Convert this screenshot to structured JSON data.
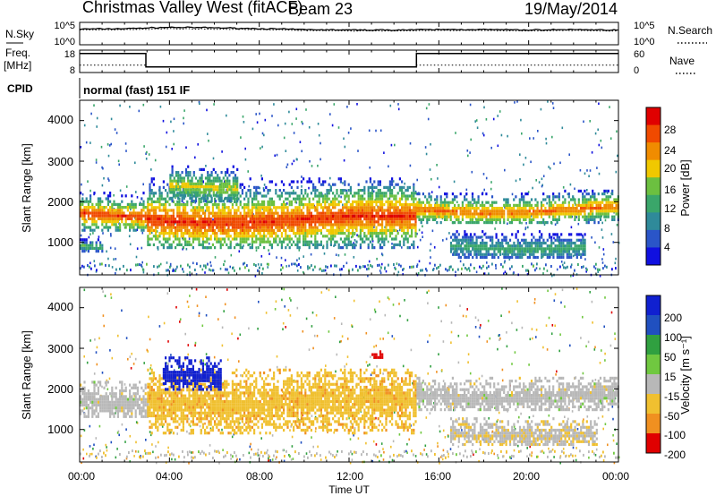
{
  "header": {
    "title": "Christmas Valley West (fitACF)",
    "beam": "Beam 23",
    "date": "19/May/2014"
  },
  "noise_panel": {
    "left_label": "N.Sky",
    "left_ticks": [
      "10^5",
      "10^0"
    ],
    "right_label": "N.Search",
    "right_ticks": [
      "10^5",
      "10^0"
    ]
  },
  "freq_panel": {
    "left_label_1": "Freq.",
    "left_label_2": "[MHz]",
    "left_ticks": [
      "18",
      "8"
    ],
    "right_label": "Nave",
    "right_ticks": [
      "60",
      "0"
    ]
  },
  "cpid": {
    "label": "CPID",
    "text": "normal (fast) 151 IF"
  },
  "x_axis": {
    "ticks": [
      "00:00",
      "04:00",
      "08:00",
      "12:00",
      "16:00",
      "20:00",
      "00:00"
    ],
    "label": "Time UT"
  },
  "power_panel": {
    "ylabel": "Slant Range [km]",
    "yticks": [
      "4000",
      "3000",
      "2000",
      "1000"
    ],
    "colorbar_label": "Power [dB]",
    "colorbar_ticks": [
      "28",
      "24",
      "20",
      "16",
      "12",
      "8",
      "4"
    ]
  },
  "velocity_panel": {
    "ylabel": "Slant Range [km]",
    "yticks": [
      "4000",
      "3000",
      "2000",
      "1000"
    ],
    "colorbar_label": "Velocity [m s⁻¹]",
    "colorbar_ticks": [
      "200",
      "100",
      "50",
      "15",
      "-15",
      "-50",
      "-100",
      "-200"
    ]
  },
  "colors": {
    "power_scale": [
      "#1010e0",
      "#2a55c8",
      "#2f8a9a",
      "#3aa66a",
      "#6cc040",
      "#f0c800",
      "#f08c00",
      "#f04a00",
      "#e00000"
    ],
    "velocity_scale": [
      "#1020d0",
      "#2050c0",
      "#30a040",
      "#70c840",
      "#b8b8b8",
      "#b8b8b8",
      "#f0c030",
      "#f09020",
      "#f05010",
      "#e00000"
    ],
    "velocity_bins": [
      {
        "label": "200",
        "color": "#1020d0"
      },
      {
        "label": "100",
        "color": "#2050c0"
      },
      {
        "label": "50",
        "color": "#30a040"
      },
      {
        "label": "15",
        "color": "#70c840"
      },
      {
        "label": "-15",
        "color": "#b8b8b8"
      },
      {
        "label": "-50",
        "color": "#f0c030"
      },
      {
        "label": "-100",
        "color": "#f09020"
      },
      {
        "label": "-200",
        "color": "#e00000"
      }
    ]
  },
  "chart_data": [
    {
      "type": "line",
      "panel": "noise",
      "x": [
        0,
        2,
        4,
        6,
        8,
        10,
        12,
        14,
        16,
        18,
        20,
        22,
        24
      ],
      "series": [
        {
          "name": "N.Sky",
          "values": [
            3.5,
            3.6,
            3.9,
            3.8,
            3.6,
            3.4,
            3.3,
            3.3,
            3.4,
            3.4,
            3.3,
            3.4,
            3.3
          ]
        },
        {
          "name": "N.Search",
          "values": [
            3.3,
            3.4,
            3.6,
            3.5,
            3.4,
            3.2,
            3.1,
            3.1,
            3.2,
            3.2,
            3.1,
            3.2,
            3.1
          ]
        }
      ],
      "ylim_log10": [
        0,
        5
      ]
    },
    {
      "type": "line",
      "panel": "frequency",
      "x": [
        0,
        2.95,
        2.95,
        15.0,
        15.0,
        24
      ],
      "series": [
        {
          "name": "Freq. [MHz]",
          "values": [
            16.5,
            16.5,
            10.5,
            10.5,
            16.5,
            16.5
          ]
        },
        {
          "name": "Nave",
          "values": [
            20,
            20,
            15,
            15,
            20,
            20
          ]
        }
      ],
      "ylim_freq": [
        8,
        18
      ],
      "ylim_nave": [
        0,
        60
      ]
    },
    {
      "type": "heatmap",
      "panel": "power",
      "x_unit": "hours UT",
      "xlim": [
        0,
        24
      ],
      "ylim": [
        200,
        4500
      ],
      "clim": [
        0,
        30
      ],
      "regions": [
        {
          "t0": 0.0,
          "t1": 3.0,
          "r0": 1300,
          "r1": 2250,
          "core": 1750,
          "peak_db": 26
        },
        {
          "t0": 0.0,
          "t1": 1.0,
          "r0": 800,
          "r1": 1100,
          "core": 950,
          "peak_db": 14
        },
        {
          "t0": 3.0,
          "t1": 15.0,
          "r0": 900,
          "r1": 2600,
          "core": 1600,
          "peak_db": 27
        },
        {
          "t0": 4.0,
          "t1": 7.0,
          "r0": 2000,
          "r1": 2900,
          "core": 2450,
          "peak_db": 18
        },
        {
          "t0": 15.0,
          "t1": 24.0,
          "r0": 1500,
          "r1": 2300,
          "core": 1850,
          "peak_db": 24
        },
        {
          "t0": 16.5,
          "t1": 22.5,
          "r0": 600,
          "r1": 1300,
          "core": 950,
          "peak_db": 12
        }
      ]
    },
    {
      "type": "heatmap",
      "panel": "velocity",
      "x_unit": "hours UT",
      "xlim": [
        0,
        24
      ],
      "ylim": [
        200,
        4500
      ],
      "clim": [
        -200,
        200
      ],
      "regions": [
        {
          "t0": 0.0,
          "t1": 3.0,
          "r0": 1300,
          "r1": 2200,
          "velocity": 0
        },
        {
          "t0": 3.0,
          "t1": 15.0,
          "r0": 900,
          "r1": 2500,
          "velocity": -40
        },
        {
          "t0": 3.7,
          "t1": 6.3,
          "r0": 2000,
          "r1": 2800,
          "velocity": 200
        },
        {
          "t0": 13.0,
          "t1": 13.6,
          "r0": 2750,
          "r1": 2950,
          "velocity": -200
        },
        {
          "t0": 15.0,
          "t1": 24.0,
          "r0": 1500,
          "r1": 2300,
          "velocity": 0
        },
        {
          "t0": 16.5,
          "t1": 23.0,
          "r0": 600,
          "r1": 1300,
          "velocity": -10
        }
      ]
    }
  ]
}
